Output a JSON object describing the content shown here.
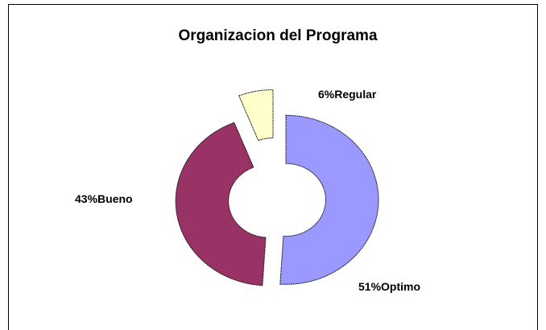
{
  "chart_data": {
    "type": "doughnut",
    "title": "Organizacion del Programa",
    "categories": [
      "Optimo",
      "Bueno",
      "Regular"
    ],
    "values": [
      51,
      43,
      6
    ],
    "value_labels": [
      "51%",
      "43%",
      "6%"
    ],
    "colors": [
      "#9999ff",
      "#993366",
      "#ffffcc"
    ]
  }
}
